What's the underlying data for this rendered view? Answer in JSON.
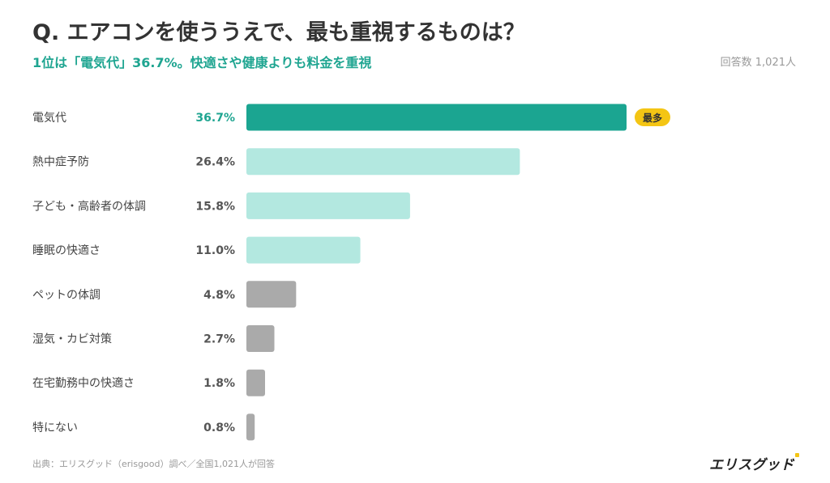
{
  "header": {
    "title": "Q. エアコンを使ううえで、最も重視するものは？",
    "subtitle": "1位は「電気代」36.7%。快適さや健康よりも料金を重視",
    "respondents": "回答数 1,021人"
  },
  "footer": {
    "source": "出典：エリスグッド（erisgood）調べ／全国1,021人が回答",
    "logo": "エリスグッド"
  },
  "colors": {
    "top": "#1ba591",
    "high": "#b3e8e0",
    "low": "#aaaaaa",
    "badge": "#f4c514",
    "top_label": "#1fa591",
    "label": "#555555"
  },
  "chart_data": {
    "type": "bar",
    "orientation": "horizontal",
    "unit": "%",
    "badge_text": "最多",
    "categories": [
      "電気代",
      "熱中症予防",
      "子ども・高齢者の体調",
      "睡眠の快適さ",
      "ペットの体調",
      "湿気・カビ対策",
      "在宅勤務中の快適さ",
      "特にない"
    ],
    "values": [
      36.7,
      26.4,
      15.8,
      11.0,
      4.8,
      2.7,
      1.8,
      0.8
    ],
    "value_labels": [
      "36.7%",
      "26.4%",
      "15.8%",
      "11.0%",
      "4.8%",
      "2.7%",
      "1.8%",
      "0.8%"
    ],
    "xlim": [
      0,
      36.7
    ],
    "grid": false,
    "legend": "none"
  }
}
